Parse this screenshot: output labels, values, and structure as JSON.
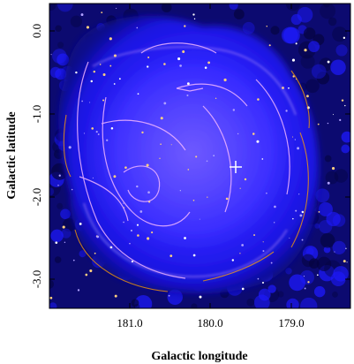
{
  "figure": {
    "xlabel": "Galactic longitude",
    "ylabel": "Galactic latitude",
    "x_ticks": [
      "181.0",
      "180.0",
      "179.0"
    ],
    "y_ticks": [
      "0.0",
      "-1.0",
      "-2.0",
      "-3.0"
    ],
    "colors": {
      "background_blue": "#1a1aff",
      "deep_blue": "#0000aa",
      "filament_pink": "#f0b4ff",
      "filament_orange": "#ffa000",
      "marker": "#ffffff"
    },
    "marker_icon": "plus-cross-icon"
  }
}
